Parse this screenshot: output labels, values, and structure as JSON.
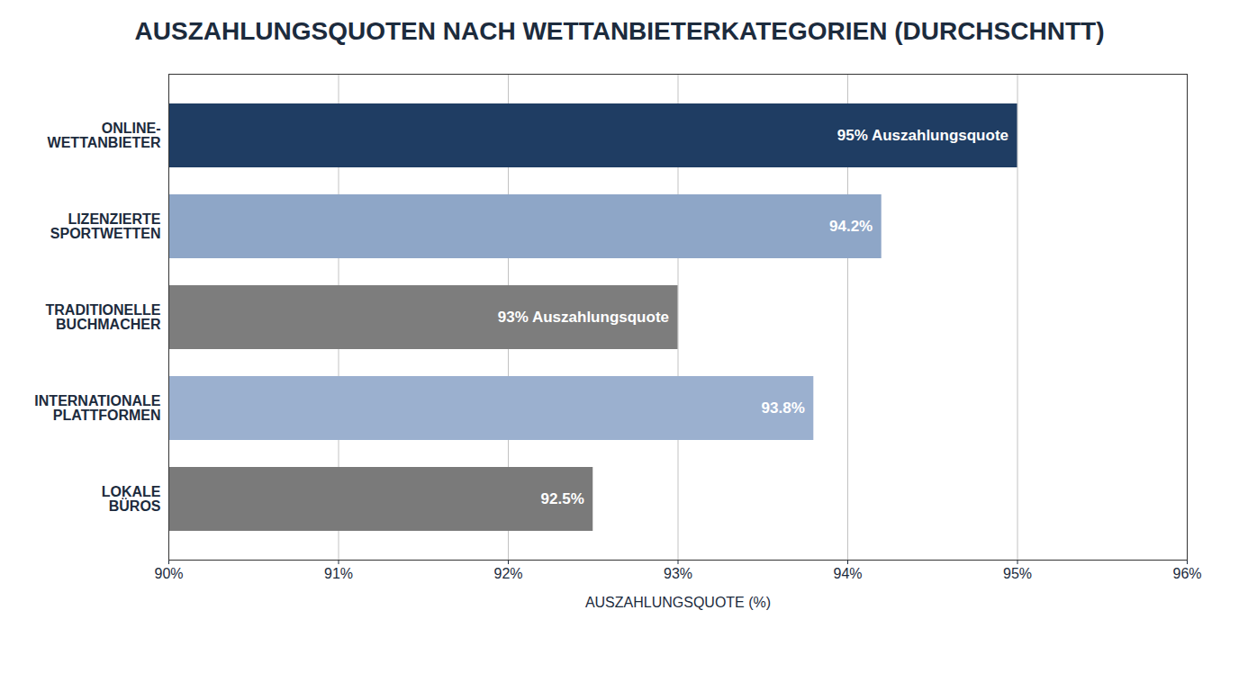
{
  "chart_data": {
    "type": "bar",
    "orientation": "horizontal",
    "title": "AUSZAHLUNGSQUOTEN NACH WETTANBIETERKATEGORIEN (DURCHSCHNTT)",
    "x_label": "AUSZAHLUNGSQUOTE (%)",
    "categories": [
      "ONLINE-WETTANBIETER",
      "LIZENZIERTE SPORTWETTEN",
      "TRADITIONELLE BUCHMACHER",
      "INTERNATIONALE PLATTFORMEN",
      "LOKALE BÜROS"
    ],
    "values": [
      95,
      94.2,
      93,
      93.8,
      92.5
    ],
    "value_labels": [
      "95% Auszahlungsquote",
      "94.2%",
      "93% Auszahlungsquote",
      "93.8%",
      "92.5%"
    ],
    "colors": [
      "#1f3d63",
      "#8ea6c7",
      "#7d7d7d",
      "#9bb0cf",
      "#7a7a7a"
    ],
    "xlim": [
      90,
      96
    ],
    "xticks": [
      {
        "value": 90,
        "label": "90%"
      },
      {
        "value": 91,
        "label": "91%"
      },
      {
        "value": 92,
        "label": "92%"
      },
      {
        "value": 93,
        "label": "93%"
      },
      {
        "value": 94,
        "label": "94%"
      },
      {
        "value": 95,
        "label": "95%"
      },
      {
        "value": 96,
        "label": "96%"
      }
    ],
    "grid": true,
    "data_labels": true
  }
}
